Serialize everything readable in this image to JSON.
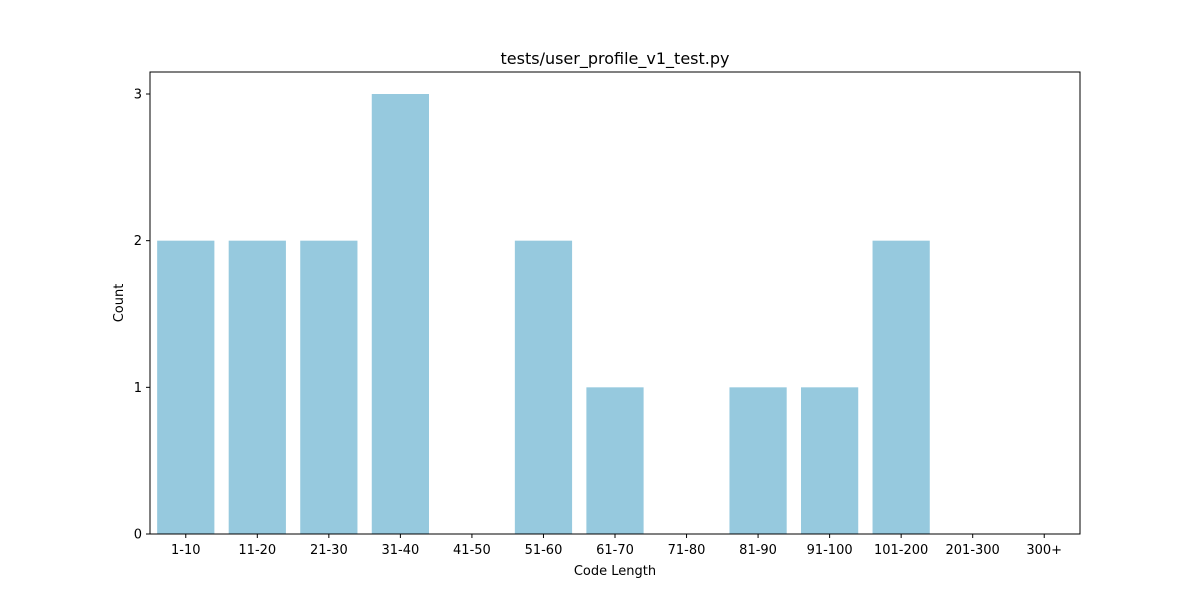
{
  "chart_data": {
    "type": "bar",
    "title": "tests/user_profile_v1_test.py",
    "xlabel": "Code Length",
    "ylabel": "Count",
    "categories": [
      "1-10",
      "11-20",
      "21-30",
      "31-40",
      "41-50",
      "51-60",
      "61-70",
      "71-80",
      "81-90",
      "91-100",
      "101-200",
      "201-300",
      "300+"
    ],
    "values": [
      2,
      2,
      2,
      3,
      0,
      2,
      1,
      0,
      1,
      1,
      2,
      0,
      0
    ],
    "ylim": [
      0,
      3.15
    ],
    "yticks": [
      0,
      1,
      2,
      3
    ],
    "bar_color": "#96c9de",
    "grid": false,
    "legend": "none"
  }
}
